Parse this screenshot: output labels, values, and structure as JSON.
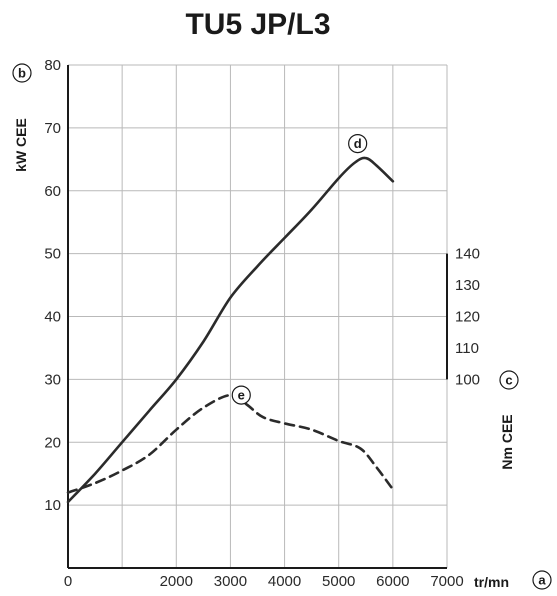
{
  "chart_data": {
    "type": "line",
    "title": "TU5 JP/L3",
    "x": {
      "label": "tr/mn",
      "marker": "a",
      "range": [
        0,
        7000
      ],
      "ticks": [
        "0",
        "2000",
        "3000",
        "4000",
        "5000",
        "6000",
        "7000"
      ],
      "tick_values": [
        0,
        2000,
        3000,
        4000,
        5000,
        6000,
        7000
      ],
      "grid_values": [
        0,
        1000,
        2000,
        3000,
        4000,
        5000,
        6000,
        7000
      ]
    },
    "y_left": {
      "label": "kW CEE",
      "marker": "b",
      "range": [
        0,
        80
      ],
      "ticks": [
        "10",
        "20",
        "30",
        "40",
        "50",
        "60",
        "70",
        "80"
      ],
      "tick_values": [
        10,
        20,
        30,
        40,
        50,
        60,
        70,
        80
      ]
    },
    "y_right": {
      "label": "Nm CEE",
      "marker": "c",
      "range": [
        40,
        200
      ],
      "ticks": [
        "100",
        "110",
        "120",
        "130",
        "140"
      ],
      "tick_values": [
        100,
        110,
        120,
        130,
        140
      ],
      "bar_range": [
        100,
        140
      ]
    },
    "grid": true,
    "series": [
      {
        "marker": "d",
        "axis": "left",
        "style": "solid",
        "color": "#2b2b2b",
        "x": [
          0,
          500,
          1000,
          1500,
          2000,
          2500,
          3000,
          3500,
          4000,
          4500,
          5000,
          5300,
          5500,
          5700,
          6000
        ],
        "y": [
          10.5,
          15,
          20,
          25,
          30,
          36,
          43,
          48,
          52.5,
          57,
          62,
          64.5,
          65.2,
          64,
          61.5
        ],
        "label_at": [
          5350,
          67.5
        ]
      },
      {
        "marker": "e",
        "axis": "left",
        "style": "dashed",
        "color": "#2b2b2b",
        "x": [
          0,
          500,
          1000,
          1500,
          2000,
          2500,
          3000,
          3300,
          3600,
          4000,
          4500,
          5000,
          5400,
          5700,
          6000
        ],
        "y": [
          12,
          13.5,
          15.5,
          18,
          22,
          25.5,
          27.5,
          26,
          24,
          23,
          22,
          20.2,
          19,
          16,
          12.5
        ],
        "label_at": [
          3200,
          27.5
        ]
      }
    ]
  }
}
